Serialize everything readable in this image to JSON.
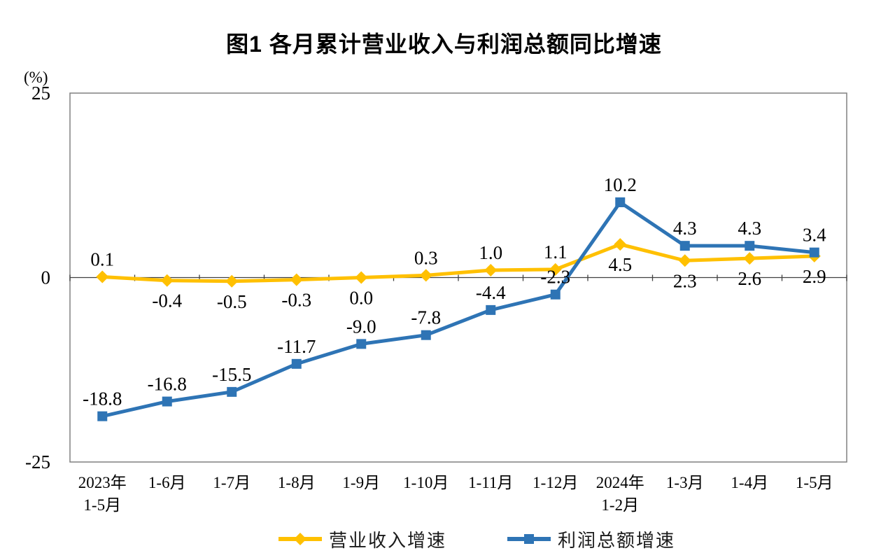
{
  "title": "图1  各月累计营业收入与利润总额同比增速",
  "y_axis": {
    "unit": "(%)",
    "ticks": [
      {
        "label": "25",
        "value": 25
      },
      {
        "label": "0",
        "value": 0
      },
      {
        "label": "-25",
        "value": -25
      }
    ]
  },
  "chart_data": {
    "type": "line",
    "title": "图1  各月累计营业收入与利润总额同比增速",
    "ylabel": "(%)",
    "ylim": [
      -25,
      25
    ],
    "grid": false,
    "legend_position": "bottom",
    "categories": [
      "2023年\n1-5月",
      "1-6月",
      "1-7月",
      "1-8月",
      "1-9月",
      "1-10月",
      "1-11月",
      "1-12月",
      "2024年\n1-2月",
      "1-3月",
      "1-4月",
      "1-5月"
    ],
    "series": [
      {
        "id": "revenue-growth",
        "name": "营业收入增速",
        "color": "#FFC000",
        "marker": "diamond",
        "values": [
          0.1,
          -0.4,
          -0.5,
          -0.3,
          0.0,
          0.3,
          1.0,
          1.1,
          4.5,
          2.3,
          2.6,
          2.9
        ],
        "labels": [
          "0.1",
          "-0.4",
          "-0.5",
          "-0.3",
          "0.0",
          "0.3",
          "1.0",
          "1.1",
          "4.5",
          "2.3",
          "2.6",
          "2.9"
        ],
        "label_positions": [
          "above",
          "below",
          "below",
          "below",
          "below",
          "above",
          "above",
          "above",
          "below",
          "below",
          "below",
          "below"
        ]
      },
      {
        "id": "profit-growth",
        "name": "利润总额增速",
        "color": "#2E74B5",
        "marker": "square",
        "values": [
          -18.8,
          -16.8,
          -15.5,
          -11.7,
          -9.0,
          -7.8,
          -4.4,
          -2.3,
          10.2,
          4.3,
          4.3,
          3.4
        ],
        "labels": [
          "-18.8",
          "-16.8",
          "-15.5",
          "-11.7",
          "-9.0",
          "-7.8",
          "-4.4",
          "-2.3",
          "10.2",
          "4.3",
          "4.3",
          "3.4"
        ],
        "label_positions": [
          "above",
          "above",
          "above",
          "above",
          "above",
          "above",
          "above",
          "above",
          "above",
          "above",
          "above",
          "above"
        ]
      }
    ]
  }
}
